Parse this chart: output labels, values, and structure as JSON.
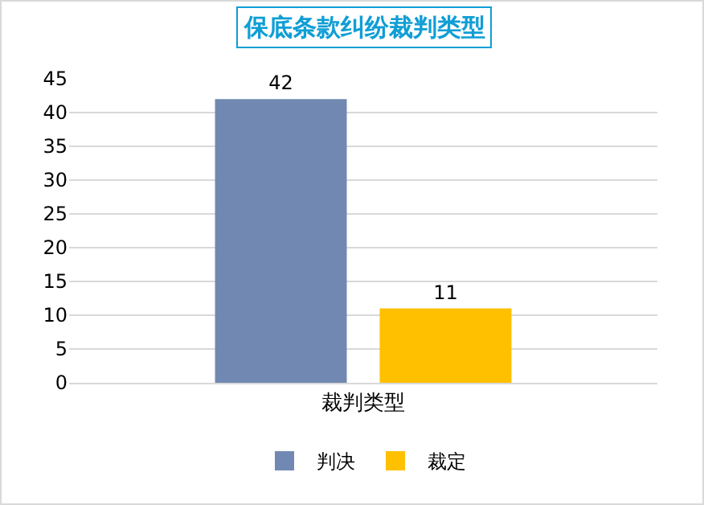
{
  "chart_data": {
    "type": "bar",
    "title": "保底条款纠纷裁判类型",
    "categories": [
      "裁判类型"
    ],
    "series": [
      {
        "name": "判决",
        "color": "#7189b2",
        "values": [
          42
        ]
      },
      {
        "name": "裁定",
        "color": "#ffc000",
        "values": [
          11
        ]
      }
    ],
    "ylim": [
      0,
      45
    ],
    "yticks": [
      0,
      5,
      10,
      15,
      20,
      25,
      30,
      35,
      40,
      45
    ],
    "grid": "y",
    "legend": "bottom",
    "data_labels": true
  }
}
